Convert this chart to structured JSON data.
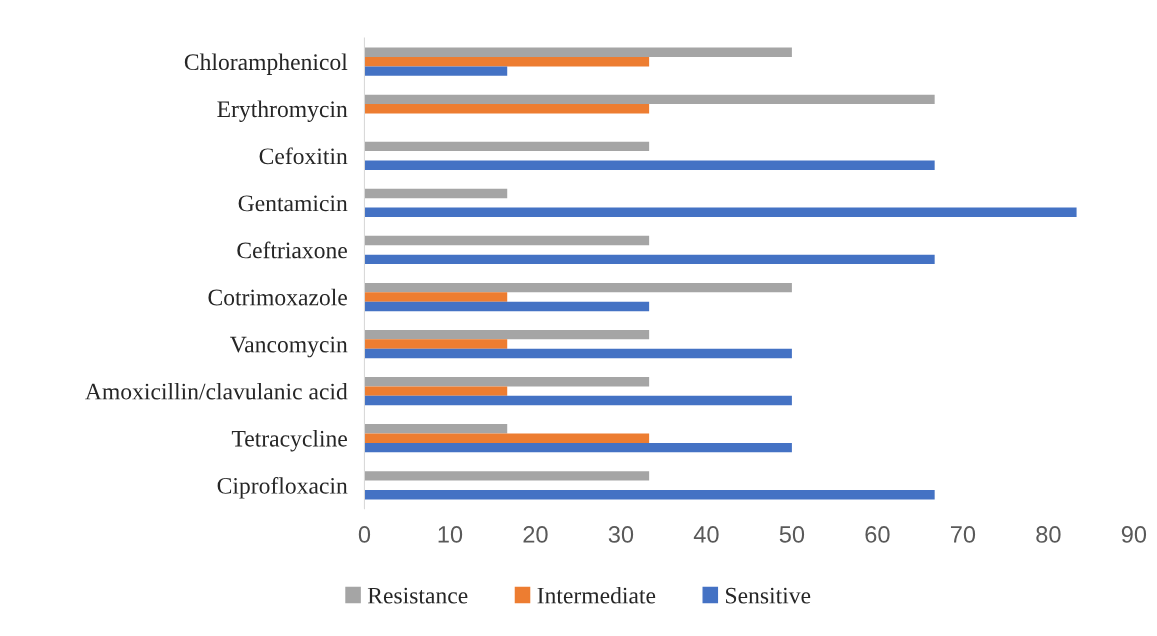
{
  "chart_data": {
    "type": "bar",
    "orientation": "horizontal",
    "categories": [
      "Chloramphenicol",
      "Erythromycin",
      "Cefoxitin",
      "Gentamicin",
      "Ceftriaxone",
      "Cotrimoxazole",
      "Vancomycin",
      "Amoxicillin/clavulanic acid",
      "Tetracycline",
      "Ciprofloxacin"
    ],
    "series": [
      {
        "name": "Resistance",
        "color": "#a5a5a5",
        "values": [
          50,
          66.7,
          33.3,
          16.7,
          33.3,
          50,
          33.3,
          33.3,
          16.7,
          33.3
        ]
      },
      {
        "name": "Intermediate",
        "color": "#ed7d31",
        "values": [
          33.3,
          33.3,
          null,
          null,
          null,
          16.7,
          16.7,
          16.7,
          33.3,
          null
        ]
      },
      {
        "name": "Sensitive",
        "color": "#4472c4",
        "values": [
          16.7,
          null,
          66.7,
          83.3,
          66.7,
          33.3,
          50,
          50,
          50,
          66.7
        ]
      }
    ],
    "xlim": [
      0,
      90
    ],
    "xticks": [
      0,
      10,
      20,
      30,
      40,
      50,
      60,
      70,
      80,
      90
    ],
    "grid": false,
    "legend": "bottom"
  }
}
